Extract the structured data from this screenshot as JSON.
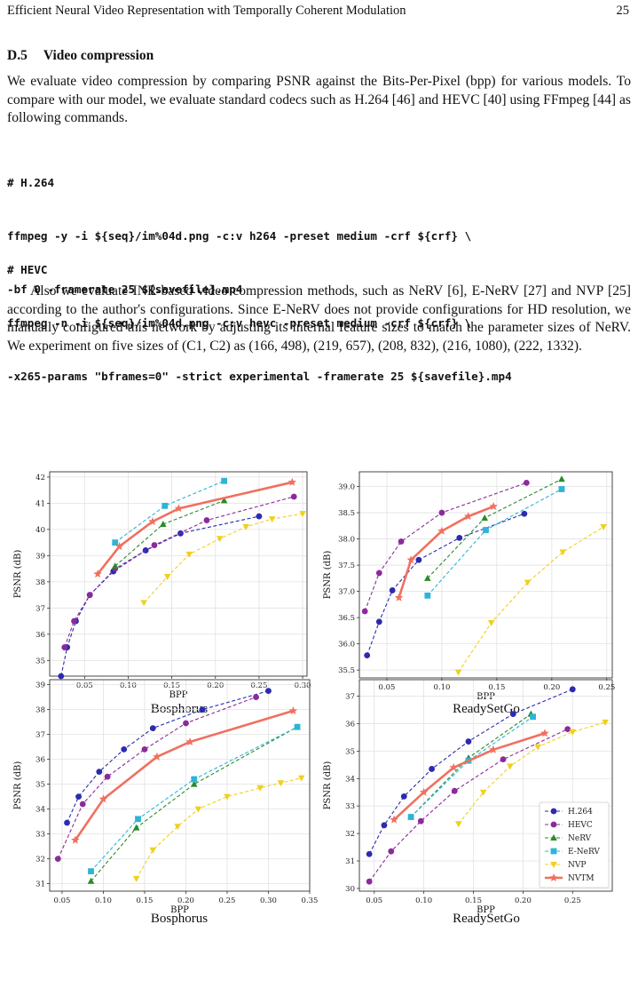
{
  "header": {
    "title": "Efficient Neural Video Representation with Temporally Coherent Modulation",
    "page": "25"
  },
  "section": {
    "num": "D.5",
    "title": "Video compression"
  },
  "para1": "We evaluate video compression by comparing PSNR against the Bits-Per-Pixel (bpp) for various models. To compare with our model, we evaluate standard codecs such as H.264 [46] and HEVC [40] using FFmpeg [44] as following commands.",
  "code1": [
    "# H.264",
    "ffmpeg -y -i ${seq}/im%04d.png -c:v h264 -preset medium -crf ${crf} \\",
    "-bf 0 -framerate 25 ${savefile}.mp4"
  ],
  "code2": [
    "# HEVC",
    "ffmpeg -n -i ${seq}/im%04d.png -c:v hevc -preset medium -crf ${crf} \\",
    "-x265-params \"bframes=0\" -strict experimental -framerate 25 ${savefile}.mp4"
  ],
  "para2": "Also we evaluate INR-based video compression methods, such as NeRV [6], E-NeRV [27] and NVP [25] according to the author's configurations. Since E-NeRV does not provide configurations for HD resolution, we manually configured this network by adjusting its internal feature sizes to match the parameter sizes of NeRV. We experiment on five sizes of (C1, C2) as (166, 498), (219, 657), (208, 832), (216, 1080), (222, 1332).",
  "chart_data": [
    {
      "type": "line",
      "title": "",
      "caption": "Bosphorus",
      "xlabel": "BPP",
      "ylabel": "PSNR (dB)",
      "xlim": [
        0.01,
        0.305
      ],
      "ylim": [
        34.4,
        42.2
      ],
      "xticks": [
        0.05,
        0.1,
        0.15,
        0.2,
        0.25,
        0.3
      ],
      "xtick_labels": [
        "0.05",
        "0.10",
        "0.15",
        "0.20",
        "0.25",
        "0.30"
      ],
      "yticks": [
        35,
        36,
        37,
        38,
        39,
        40,
        41,
        42
      ],
      "ytick_labels": [
        "35",
        "36",
        "37",
        "38",
        "39",
        "40",
        "41",
        "42"
      ],
      "grid": true,
      "series": [
        {
          "name": "H.264",
          "color": "#2b2bb0",
          "marker": "circle",
          "dash": true,
          "points": [
            [
              0.023,
              34.4
            ],
            [
              0.03,
              35.5
            ],
            [
              0.04,
              36.5
            ],
            [
              0.056,
              37.5
            ],
            [
              0.083,
              38.4
            ],
            [
              0.12,
              39.2
            ],
            [
              0.16,
              39.85
            ],
            [
              0.25,
              40.5
            ]
          ]
        },
        {
          "name": "HEVC",
          "color": "#8b2a9a",
          "marker": "circle",
          "dash": true,
          "points": [
            [
              0.027,
              35.5
            ],
            [
              0.038,
              36.5
            ],
            [
              0.056,
              37.5
            ],
            [
              0.085,
              38.5
            ],
            [
              0.13,
              39.4
            ],
            [
              0.19,
              40.35
            ],
            [
              0.29,
              41.25
            ]
          ]
        },
        {
          "name": "NeRV",
          "color": "#2a8a2a",
          "marker": "tri-up",
          "dash": true,
          "points": [
            [
              0.085,
              38.6
            ],
            [
              0.14,
              40.2
            ],
            [
              0.21,
              41.1
            ]
          ]
        },
        {
          "name": "E-NeRV",
          "color": "#2eb4d6",
          "marker": "square",
          "dash": true,
          "points": [
            [
              0.085,
              39.5
            ],
            [
              0.142,
              40.9
            ],
            [
              0.21,
              41.85
            ]
          ]
        },
        {
          "name": "NVP",
          "color": "#f0d020",
          "marker": "tri-down",
          "dash": true,
          "points": [
            [
              0.118,
              37.2
            ],
            [
              0.145,
              38.2
            ],
            [
              0.17,
              39.05
            ],
            [
              0.205,
              39.65
            ],
            [
              0.235,
              40.1
            ],
            [
              0.265,
              40.4
            ],
            [
              0.3,
              40.6
            ]
          ]
        },
        {
          "name": "NVTM",
          "color": "#f07060",
          "marker": "star",
          "dash": false,
          "points": [
            [
              0.065,
              38.3
            ],
            [
              0.09,
              39.35
            ],
            [
              0.128,
              40.3
            ],
            [
              0.158,
              40.8
            ],
            [
              0.288,
              41.8
            ]
          ]
        }
      ]
    },
    {
      "type": "line",
      "title": "",
      "caption": "ReadySetGo",
      "xlabel": "BPP",
      "ylabel": "PSNR (dB)",
      "xlim": [
        0.025,
        0.255
      ],
      "ylim": [
        35.35,
        39.28
      ],
      "xticks": [
        0.05,
        0.1,
        0.15,
        0.2,
        0.25
      ],
      "xtick_labels": [
        "0.05",
        "0.10",
        "0.15",
        "0.20",
        "0.25"
      ],
      "yticks": [
        35.5,
        36.0,
        36.5,
        37.0,
        37.5,
        38.0,
        38.5,
        39.0
      ],
      "ytick_labels": [
        "35.5",
        "36.0",
        "36.5",
        "37.0",
        "37.5",
        "38.0",
        "38.5",
        "39.0"
      ],
      "grid": true,
      "series": [
        {
          "name": "H.264",
          "color": "#2b2bb0",
          "marker": "circle",
          "dash": true,
          "points": [
            [
              0.032,
              35.78
            ],
            [
              0.043,
              36.42
            ],
            [
              0.055,
              37.02
            ],
            [
              0.079,
              37.6
            ],
            [
              0.116,
              38.02
            ],
            [
              0.175,
              38.48
            ]
          ]
        },
        {
          "name": "HEVC",
          "color": "#8b2a9a",
          "marker": "circle",
          "dash": true,
          "points": [
            [
              0.03,
              36.62
            ],
            [
              0.043,
              37.35
            ],
            [
              0.063,
              37.95
            ],
            [
              0.1,
              38.5
            ],
            [
              0.177,
              39.07
            ]
          ]
        },
        {
          "name": "NeRV",
          "color": "#2a8a2a",
          "marker": "tri-up",
          "dash": true,
          "points": [
            [
              0.087,
              37.25
            ],
            [
              0.139,
              38.4
            ],
            [
              0.209,
              39.14
            ]
          ]
        },
        {
          "name": "E-NeRV",
          "color": "#2eb4d6",
          "marker": "square",
          "dash": true,
          "points": [
            [
              0.087,
              36.92
            ],
            [
              0.14,
              38.17
            ],
            [
              0.209,
              38.95
            ]
          ]
        },
        {
          "name": "NVP",
          "color": "#f0d020",
          "marker": "tri-down",
          "dash": true,
          "points": [
            [
              0.115,
              35.46
            ],
            [
              0.145,
              36.4
            ],
            [
              0.178,
              37.17
            ],
            [
              0.21,
              37.75
            ],
            [
              0.247,
              38.23
            ]
          ]
        },
        {
          "name": "NVTM",
          "color": "#f07060",
          "marker": "star",
          "dash": false,
          "points": [
            [
              0.061,
              36.88
            ],
            [
              0.072,
              37.6
            ],
            [
              0.1,
              38.15
            ],
            [
              0.124,
              38.43
            ],
            [
              0.147,
              38.62
            ]
          ]
        }
      ]
    },
    {
      "type": "line",
      "title": "",
      "caption": "Bosphorus",
      "xlabel": "BPP",
      "ylabel": "PSNR (dB)",
      "xlim": [
        0.035,
        0.35
      ],
      "ylim": [
        30.7,
        39.2
      ],
      "xticks": [
        0.05,
        0.1,
        0.15,
        0.2,
        0.25,
        0.3,
        0.35
      ],
      "xtick_labels": [
        "0.05",
        "0.10",
        "0.15",
        "0.20",
        "0.25",
        "0.30",
        "0.35"
      ],
      "yticks": [
        31,
        32,
        33,
        34,
        35,
        36,
        37,
        38,
        39
      ],
      "ytick_labels": [
        "31",
        "32",
        "33",
        "34",
        "35",
        "36",
        "37",
        "38",
        "39"
      ],
      "grid": true,
      "series": [
        {
          "name": "H.264",
          "color": "#2b2bb0",
          "marker": "circle",
          "dash": true,
          "points": [
            [
              0.056,
              33.45
            ],
            [
              0.07,
              34.5
            ],
            [
              0.095,
              35.5
            ],
            [
              0.125,
              36.4
            ],
            [
              0.16,
              37.25
            ],
            [
              0.22,
              38.0
            ],
            [
              0.3,
              38.75
            ]
          ]
        },
        {
          "name": "HEVC",
          "color": "#8b2a9a",
          "marker": "circle",
          "dash": true,
          "points": [
            [
              0.045,
              32.0
            ],
            [
              0.075,
              34.2
            ],
            [
              0.105,
              35.3
            ],
            [
              0.15,
              36.4
            ],
            [
              0.2,
              37.45
            ],
            [
              0.285,
              38.5
            ]
          ]
        },
        {
          "name": "NeRV",
          "color": "#2a8a2a",
          "marker": "tri-up",
          "dash": true,
          "points": [
            [
              0.085,
              31.1
            ],
            [
              0.14,
              33.25
            ],
            [
              0.21,
              35.0
            ],
            [
              0.335,
              37.3
            ]
          ]
        },
        {
          "name": "E-NeRV",
          "color": "#2eb4d6",
          "marker": "square",
          "dash": true,
          "points": [
            [
              0.085,
              31.5
            ],
            [
              0.142,
              33.6
            ],
            [
              0.21,
              35.2
            ],
            [
              0.335,
              37.3
            ]
          ]
        },
        {
          "name": "NVP",
          "color": "#f0d020",
          "marker": "tri-down",
          "dash": true,
          "points": [
            [
              0.14,
              31.2
            ],
            [
              0.16,
              32.35
            ],
            [
              0.19,
              33.3
            ],
            [
              0.215,
              34.0
            ],
            [
              0.25,
              34.5
            ],
            [
              0.29,
              34.85
            ],
            [
              0.315,
              35.05
            ],
            [
              0.34,
              35.25
            ]
          ]
        },
        {
          "name": "NVTM",
          "color": "#f07060",
          "marker": "star",
          "dash": false,
          "points": [
            [
              0.066,
              32.75
            ],
            [
              0.1,
              34.4
            ],
            [
              0.165,
              36.1
            ],
            [
              0.205,
              36.7
            ],
            [
              0.33,
              37.95
            ]
          ]
        }
      ]
    },
    {
      "type": "line",
      "title": "",
      "caption": "ReadySetGo",
      "xlabel": "BPP",
      "ylabel": "PSNR (dB)",
      "xlim": [
        0.035,
        0.29
      ],
      "ylim": [
        29.9,
        37.6
      ],
      "xticks": [
        0.05,
        0.1,
        0.15,
        0.2,
        0.25
      ],
      "xtick_labels": [
        "0.05",
        "0.10",
        "0.15",
        "0.20",
        "0.25"
      ],
      "yticks": [
        30,
        31,
        32,
        33,
        34,
        35,
        36,
        37
      ],
      "ytick_labels": [
        "30",
        "31",
        "32",
        "33",
        "34",
        "35",
        "36",
        "37"
      ],
      "grid": true,
      "legend": "lower right",
      "series": [
        {
          "name": "H.264",
          "color": "#2b2bb0",
          "marker": "circle",
          "dash": true,
          "points": [
            [
              0.045,
              31.25
            ],
            [
              0.06,
              32.3
            ],
            [
              0.08,
              33.35
            ],
            [
              0.108,
              34.35
            ],
            [
              0.145,
              35.35
            ],
            [
              0.19,
              36.35
            ],
            [
              0.25,
              37.25
            ]
          ]
        },
        {
          "name": "HEVC",
          "color": "#8b2a9a",
          "marker": "circle",
          "dash": true,
          "points": [
            [
              0.045,
              30.25
            ],
            [
              0.067,
              31.35
            ],
            [
              0.097,
              32.45
            ],
            [
              0.131,
              33.55
            ],
            [
              0.18,
              34.7
            ],
            [
              0.245,
              35.8
            ]
          ]
        },
        {
          "name": "NeRV",
          "color": "#2a8a2a",
          "marker": "tri-up",
          "dash": true,
          "points": [
            [
              0.087,
              32.6
            ],
            [
              0.145,
              34.75
            ],
            [
              0.208,
              36.35
            ]
          ]
        },
        {
          "name": "E-NeRV",
          "color": "#2eb4d6",
          "marker": "square",
          "dash": true,
          "points": [
            [
              0.087,
              32.6
            ],
            [
              0.145,
              34.65
            ],
            [
              0.21,
              36.25
            ]
          ]
        },
        {
          "name": "NVP",
          "color": "#f0d020",
          "marker": "tri-down",
          "dash": true,
          "points": [
            [
              0.135,
              32.35
            ],
            [
              0.16,
              33.5
            ],
            [
              0.187,
              34.45
            ],
            [
              0.215,
              35.15
            ],
            [
              0.25,
              35.7
            ],
            [
              0.283,
              36.05
            ]
          ]
        },
        {
          "name": "NVTM",
          "color": "#f07060",
          "marker": "star",
          "dash": false,
          "points": [
            [
              0.07,
              32.5
            ],
            [
              0.1,
              33.5
            ],
            [
              0.13,
              34.4
            ],
            [
              0.17,
              35.05
            ],
            [
              0.222,
              35.65
            ]
          ]
        }
      ]
    }
  ]
}
